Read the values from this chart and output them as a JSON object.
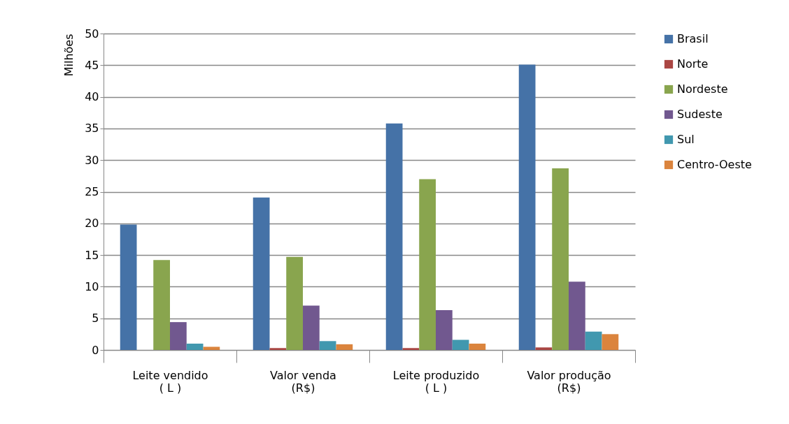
{
  "chart_data": {
    "type": "bar",
    "ylabel": "Milhões",
    "categories": [
      "Leite vendido\n( L )",
      "Valor venda\n(R$)",
      "Leite produzido\n( L )",
      "Valor produção\n(R$)"
    ],
    "series": [
      {
        "name": "Brasil",
        "color": "#4572a7",
        "values": [
          19.8,
          24.1,
          35.8,
          45.1
        ]
      },
      {
        "name": "Norte",
        "color": "#aa4643",
        "values": [
          0,
          0.3,
          0.3,
          0.4
        ]
      },
      {
        "name": "Nordeste",
        "color": "#89a54e",
        "values": [
          14.2,
          14.7,
          27.0,
          28.7
        ]
      },
      {
        "name": "Sudeste",
        "color": "#71588f",
        "values": [
          4.4,
          7.0,
          6.3,
          10.8
        ]
      },
      {
        "name": "Sul",
        "color": "#4198af",
        "values": [
          1.0,
          1.4,
          1.6,
          2.9
        ]
      },
      {
        "name": "Centro-Oeste",
        "color": "#db843d",
        "values": [
          0.5,
          0.9,
          1.0,
          2.5
        ]
      }
    ],
    "ylim": [
      0,
      50
    ],
    "yticks": [
      0,
      5,
      10,
      15,
      20,
      25,
      30,
      35,
      40,
      45,
      50
    ],
    "grid": "y",
    "legend": "right"
  }
}
